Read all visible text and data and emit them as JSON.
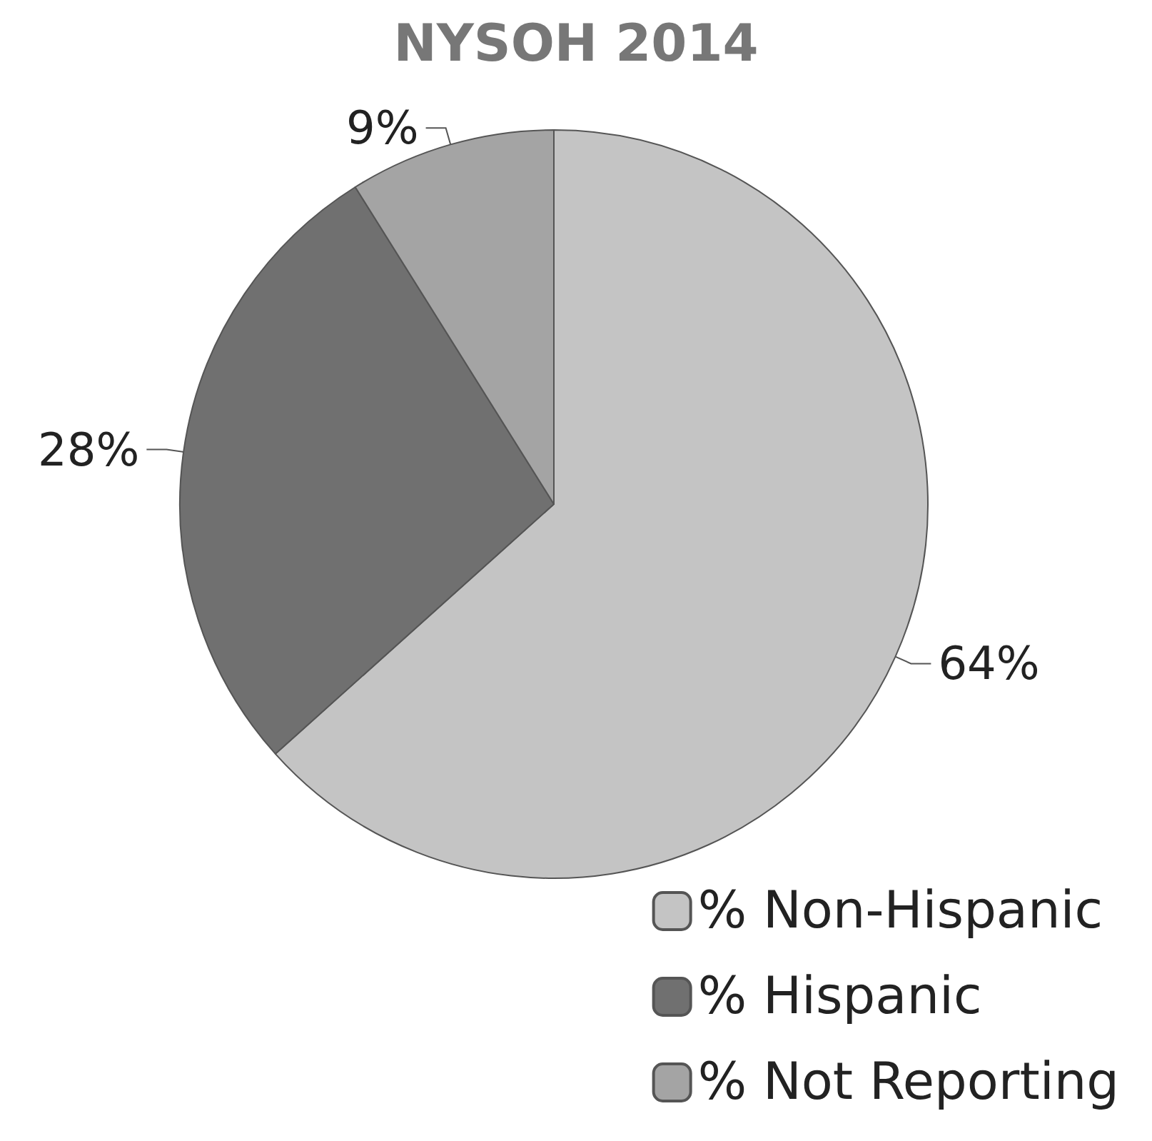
{
  "chart_data": {
    "type": "pie",
    "title": "NYSOH 2014",
    "categories": [
      "% Non-Hispanic",
      "% Hispanic",
      "% Not Reporting"
    ],
    "values": [
      64,
      28,
      9
    ],
    "value_labels": [
      "64%",
      "28%",
      "9%"
    ],
    "colors": [
      "#c4c4c4",
      "#707070",
      "#a4a4a4"
    ],
    "legend": "bottom right"
  }
}
